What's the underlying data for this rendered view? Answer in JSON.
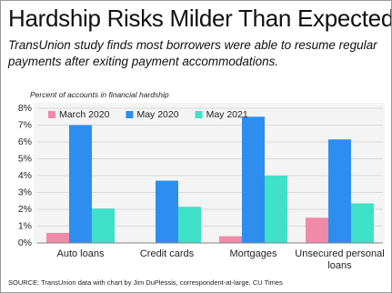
{
  "chart_data": {
    "type": "bar",
    "title": "Hardship Risks Milder Than Expected",
    "subtitle": "TransUnion study finds most borrowers were able to resume regular payments after exiting payment accommodations.",
    "y_label": "Percent of accounts in financial hardship",
    "source": "SOURCE: TransUnion data with chart by Jim DuPlessis, correspondent-at-large, CU Times",
    "categories": [
      "Auto loans",
      "Credit cards",
      "Mortgages",
      "Unsecured personal loans"
    ],
    "series": [
      {
        "name": "March 2020",
        "color": "#f08aa8",
        "values": [
          0.6,
          null,
          0.4,
          1.5
        ]
      },
      {
        "name": "May 2020",
        "color": "#2d8ef0",
        "values": [
          7.0,
          3.7,
          7.5,
          6.15
        ]
      },
      {
        "name": "May 2021",
        "color": "#3fe0c8",
        "values": [
          2.05,
          2.15,
          4.0,
          2.35
        ]
      }
    ],
    "ylim": [
      0,
      8
    ],
    "yticks": [
      {
        "value": 0,
        "label": "0%"
      },
      {
        "value": 1,
        "label": "1%"
      },
      {
        "value": 2,
        "label": "2%"
      },
      {
        "value": 3,
        "label": "3%"
      },
      {
        "value": 4,
        "label": "4%"
      },
      {
        "value": 5,
        "label": "5%"
      },
      {
        "value": 6,
        "label": "6%"
      },
      {
        "value": 7,
        "label": "7%"
      },
      {
        "value": 8,
        "label": "8%"
      }
    ],
    "grid": true,
    "legend": "top-left"
  }
}
